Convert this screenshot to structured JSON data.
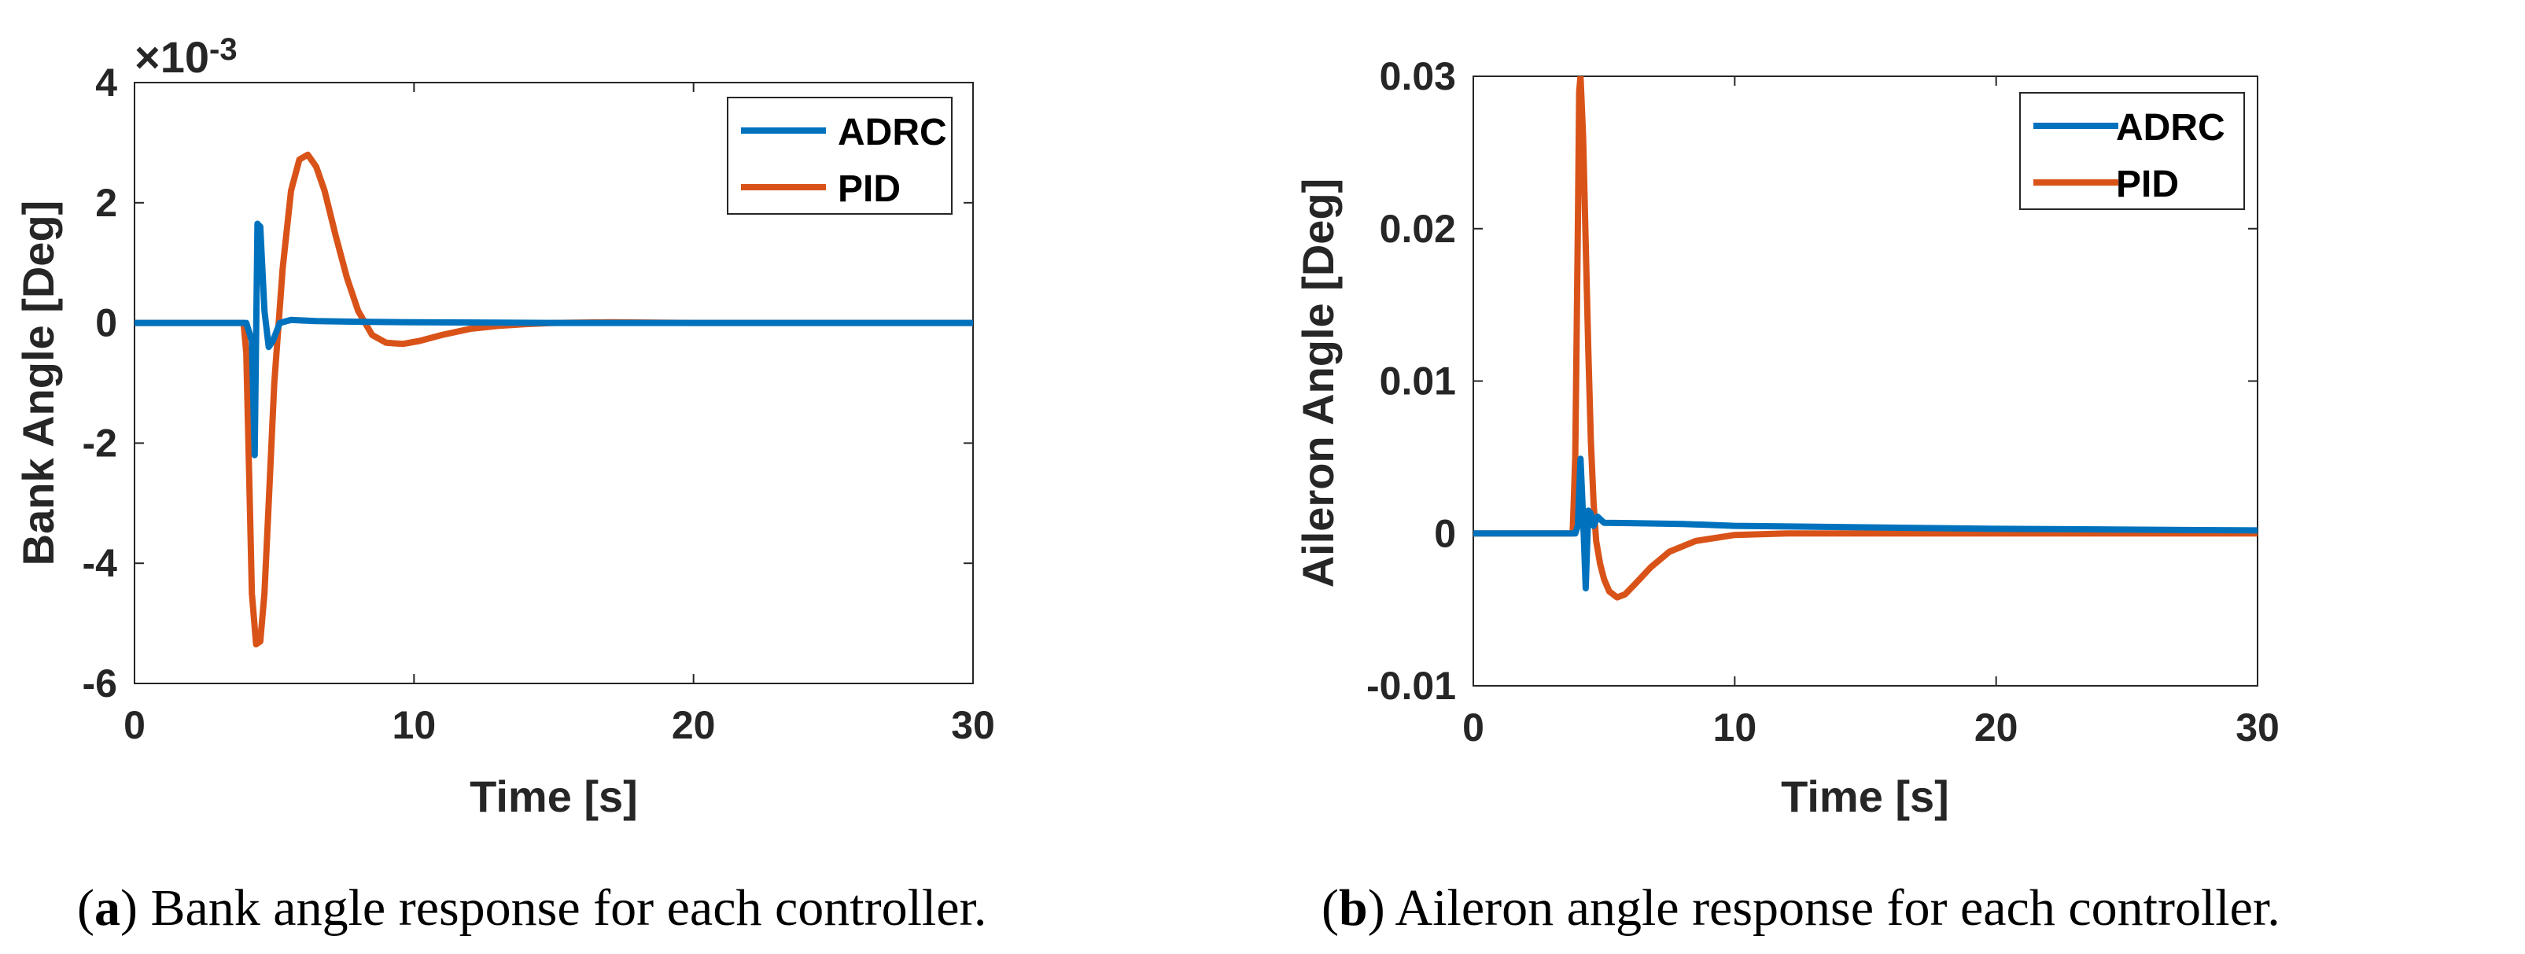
{
  "chart_data": [
    {
      "type": "line",
      "panel_label": "a",
      "caption": "Bank angle response for each controller.",
      "title": "",
      "xlabel": "Time [s]",
      "ylabel": "Bank Angle [Deg]",
      "exponent_label": "×10",
      "exponent_power": "-3",
      "xlim": [
        0,
        30
      ],
      "ylim": [
        -6,
        4
      ],
      "xticks": [
        0,
        10,
        20,
        30
      ],
      "yticks": [
        -6,
        -4,
        -2,
        0,
        2,
        4
      ],
      "xtick_labels": [
        "0",
        "10",
        "20",
        "30"
      ],
      "ytick_labels": [
        "-6",
        "-4",
        "-2",
        "0",
        "2",
        "4"
      ],
      "legend_position": "top-right",
      "series": [
        {
          "name": "ADRC",
          "color": "#0072BD",
          "x": [
            0,
            4.0,
            4.2,
            4.3,
            4.4,
            4.5,
            4.65,
            4.8,
            4.95,
            5.2,
            5.6,
            6.5,
            8,
            10,
            15,
            30
          ],
          "y": [
            0,
            0,
            -0.3,
            -2.2,
            1.65,
            1.6,
            0.2,
            -0.4,
            -0.3,
            0.0,
            0.05,
            0.03,
            0.02,
            0.01,
            0.0,
            0.0
          ]
        },
        {
          "name": "PID",
          "color": "#D95319",
          "x": [
            0,
            3.9,
            4.0,
            4.1,
            4.2,
            4.35,
            4.5,
            4.65,
            4.8,
            5.0,
            5.3,
            5.6,
            5.9,
            6.2,
            6.5,
            6.8,
            7.2,
            7.6,
            8.0,
            8.5,
            9.0,
            9.6,
            10.2,
            11,
            12,
            13,
            14,
            15,
            17,
            20,
            30
          ],
          "y": [
            0,
            0,
            -0.5,
            -2.5,
            -4.5,
            -5.35,
            -5.3,
            -4.5,
            -3.0,
            -1.0,
            0.9,
            2.2,
            2.72,
            2.8,
            2.6,
            2.2,
            1.45,
            0.75,
            0.2,
            -0.2,
            -0.33,
            -0.35,
            -0.3,
            -0.2,
            -0.1,
            -0.05,
            -0.02,
            0.0,
            0.01,
            0.0,
            0.0
          ]
        }
      ]
    },
    {
      "type": "line",
      "panel_label": "b",
      "caption": "Aileron angle response for each controller.",
      "title": "",
      "xlabel": "Time [s]",
      "ylabel": "Aileron Angle [Deg]",
      "xlim": [
        0,
        30
      ],
      "ylim": [
        -0.01,
        0.03
      ],
      "xticks": [
        0,
        10,
        20,
        30
      ],
      "yticks": [
        -0.01,
        0,
        0.01,
        0.02,
        0.03
      ],
      "xtick_labels": [
        "0",
        "10",
        "20",
        "30"
      ],
      "ytick_labels": [
        "-0.01",
        "0",
        "0.01",
        "0.02",
        "0.03"
      ],
      "legend_position": "top-right",
      "series": [
        {
          "name": "ADRC",
          "color": "#0072BD",
          "x": [
            0,
            3.9,
            4.0,
            4.1,
            4.2,
            4.3,
            4.4,
            4.5,
            4.6,
            4.75,
            5.0,
            6,
            8,
            10,
            15,
            20,
            30
          ],
          "y": [
            0,
            0,
            0.0005,
            0.0049,
            0.001,
            -0.0036,
            0.0015,
            0.0013,
            0.0005,
            0.0011,
            0.0007,
            0.00068,
            0.00062,
            0.0005,
            0.0004,
            0.0003,
            0.0002
          ]
        },
        {
          "name": "PID",
          "color": "#D95319",
          "x": [
            0,
            3.8,
            3.9,
            4.0,
            4.05,
            4.1,
            4.2,
            4.3,
            4.4,
            4.5,
            4.6,
            4.7,
            4.85,
            5.0,
            5.2,
            5.5,
            5.8,
            6.2,
            6.8,
            7.5,
            8.5,
            10,
            12,
            15,
            30
          ],
          "y": [
            0,
            0,
            0.005,
            0.02,
            0.029,
            0.03,
            0.026,
            0.019,
            0.012,
            0.006,
            0.002,
            -0.0005,
            -0.002,
            -0.003,
            -0.0038,
            -0.0042,
            -0.004,
            -0.0033,
            -0.0022,
            -0.0012,
            -0.0005,
            -0.0001,
            0.0,
            0.0,
            0.0
          ]
        }
      ]
    }
  ]
}
